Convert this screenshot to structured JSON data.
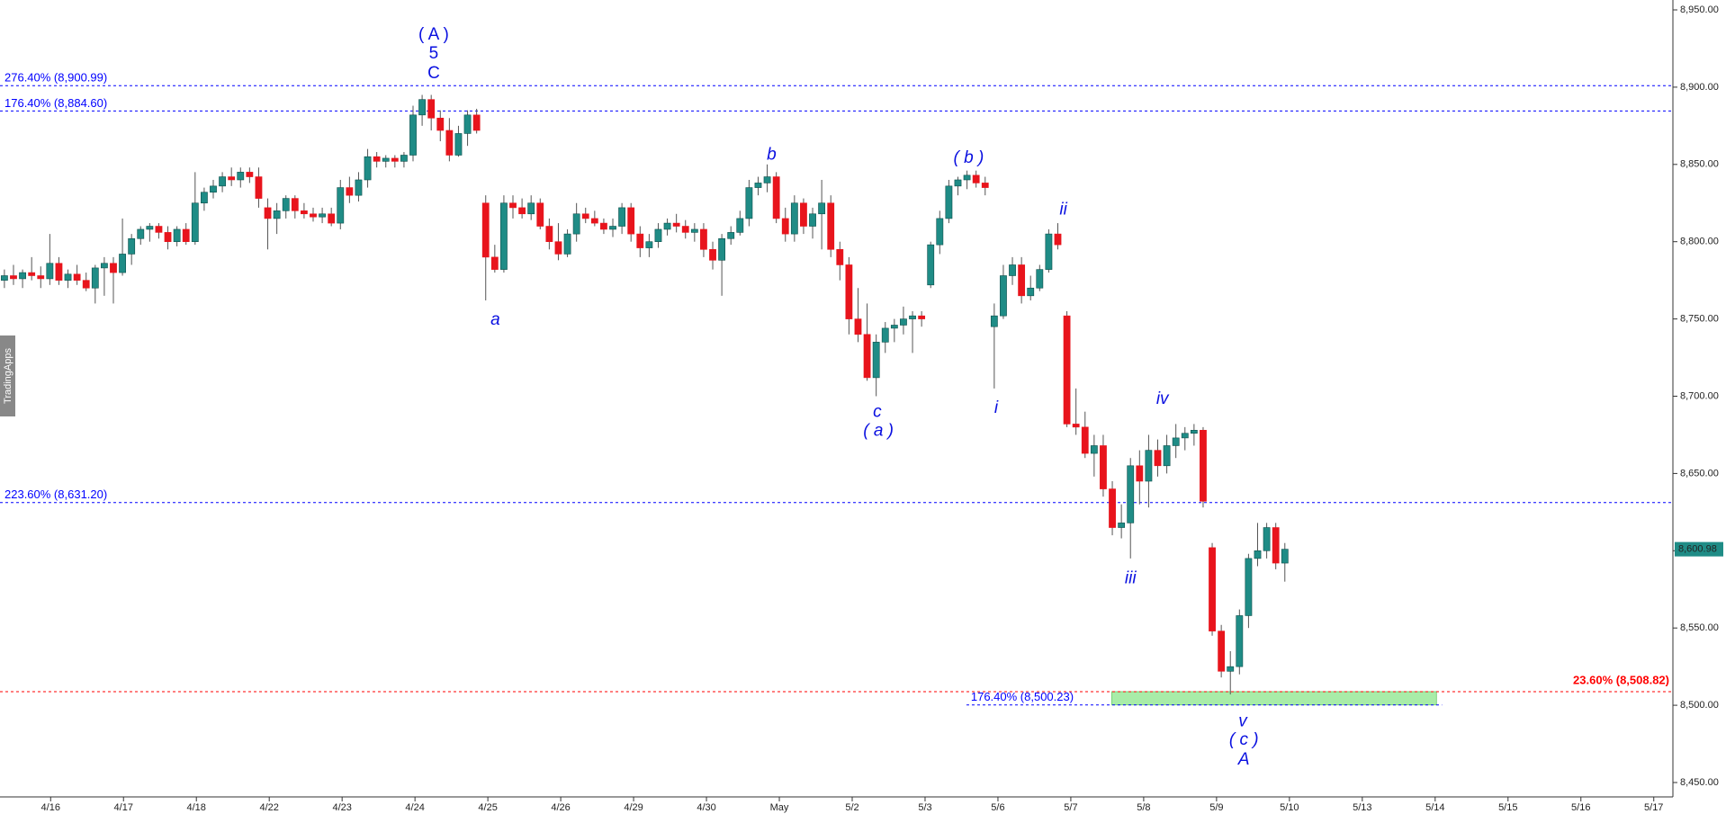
{
  "chart_data": {
    "type": "candlestick",
    "watermark": "TradingApps",
    "up_color": "#1f8c86",
    "down_color": "#e8141c",
    "ylim": [
      8450,
      8950
    ],
    "yticks": [
      {
        "value": 8450,
        "label": "8,450.00"
      },
      {
        "value": 8500,
        "label": "8,500.00"
      },
      {
        "value": 8550,
        "label": "8,550.00"
      },
      {
        "value": 8600,
        "label": "8,600.00"
      },
      {
        "value": 8650,
        "label": "8,650.00"
      },
      {
        "value": 8700,
        "label": "8,700.00"
      },
      {
        "value": 8750,
        "label": "8,750.00"
      },
      {
        "value": 8800,
        "label": "8,800.00"
      },
      {
        "value": 8850,
        "label": "8,850.00"
      },
      {
        "value": 8900,
        "label": "8,900.00"
      },
      {
        "value": 8950,
        "label": "8,950.00"
      }
    ],
    "x_labels": [
      "4/16",
      "4/17",
      "4/18",
      "4/22",
      "4/23",
      "4/24",
      "4/25",
      "4/26",
      "4/29",
      "4/30",
      "May",
      "5/2",
      "5/3",
      "5/6",
      "5/7",
      "5/8",
      "5/9",
      "5/10",
      "5/13",
      "5/14",
      "5/15",
      "5/16",
      "5/17"
    ],
    "last_price": {
      "value": 8600.98,
      "label": "8,600.98"
    },
    "levels": [
      {
        "value": 8900.99,
        "label": "276.40% (8,900.99)",
        "color": "#0000ff"
      },
      {
        "value": 8884.6,
        "label": "176.40% (8,884.60)",
        "color": "#0000ff"
      },
      {
        "value": 8631.2,
        "label": "223.60% (8,631.20)",
        "color": "#0000ff"
      },
      {
        "value": 8508.82,
        "label": "23.60% (8,508.82)",
        "color": "#ff0000"
      },
      {
        "value": 8500.23,
        "label": "176.40% (8,500.23)",
        "color": "#0000ff"
      }
    ],
    "zone_color": "#a8eca8",
    "annotations": [
      "( A )",
      "5",
      "C",
      "a",
      "b",
      "c",
      "( a )",
      "( b )",
      "i",
      "ii",
      "iii",
      "iv",
      "v",
      "( c )",
      "A"
    ],
    "candles": [
      [
        8775,
        8782,
        8770,
        8778
      ],
      [
        8778,
        8785,
        8772,
        8776
      ],
      [
        8776,
        8782,
        8770,
        8780
      ],
      [
        8780,
        8790,
        8775,
        8778
      ],
      [
        8778,
        8784,
        8770,
        8776
      ],
      [
        8776,
        8805,
        8772,
        8786
      ],
      [
        8786,
        8790,
        8772,
        8775
      ],
      [
        8775,
        8782,
        8770,
        8779
      ],
      [
        8779,
        8785,
        8772,
        8775
      ],
      [
        8775,
        8780,
        8768,
        8770
      ],
      [
        8770,
        8785,
        8760,
        8783
      ],
      [
        8783,
        8790,
        8765,
        8786
      ],
      [
        8786,
        8790,
        8760,
        8780
      ],
      [
        8780,
        8815,
        8778,
        8792
      ],
      [
        8792,
        8805,
        8785,
        8802
      ],
      [
        8802,
        8810,
        8798,
        8808
      ],
      [
        8808,
        8812,
        8800,
        8810
      ],
      [
        8810,
        8812,
        8802,
        8806
      ],
      [
        8806,
        8810,
        8795,
        8800
      ],
      [
        8800,
        8810,
        8797,
        8808
      ],
      [
        8808,
        8812,
        8798,
        8800
      ],
      [
        8800,
        8845,
        8798,
        8825
      ],
      [
        8825,
        8835,
        8820,
        8832
      ],
      [
        8832,
        8840,
        8828,
        8836
      ],
      [
        8836,
        8845,
        8832,
        8842
      ],
      [
        8842,
        8848,
        8836,
        8840
      ],
      [
        8840,
        8848,
        8835,
        8845
      ],
      [
        8845,
        8848,
        8838,
        8842
      ],
      [
        8842,
        8848,
        8822,
        8828
      ],
      [
        8822,
        8828,
        8795,
        8815
      ],
      [
        8815,
        8825,
        8805,
        8820
      ],
      [
        8820,
        8830,
        8815,
        8828
      ],
      [
        8828,
        8830,
        8815,
        8820
      ],
      [
        8820,
        8825,
        8815,
        8818
      ],
      [
        8818,
        8822,
        8813,
        8816
      ],
      [
        8816,
        8822,
        8812,
        8818
      ],
      [
        8818,
        8822,
        8810,
        8812
      ],
      [
        8812,
        8840,
        8808,
        8835
      ],
      [
        8835,
        8842,
        8825,
        8830
      ],
      [
        8830,
        8845,
        8826,
        8840
      ],
      [
        8840,
        8860,
        8835,
        8855
      ],
      [
        8855,
        8858,
        8848,
        8852
      ],
      [
        8852,
        8856,
        8848,
        8854
      ],
      [
        8854,
        8856,
        8848,
        8852
      ],
      [
        8852,
        8858,
        8848,
        8856
      ],
      [
        8856,
        8888,
        8852,
        8882
      ],
      [
        8882,
        8895,
        8875,
        8892
      ],
      [
        8892,
        8895,
        8872,
        8880
      ],
      [
        8880,
        8885,
        8865,
        8872
      ],
      [
        8872,
        8880,
        8852,
        8856
      ],
      [
        8856,
        8875,
        8855,
        8870
      ],
      [
        8870,
        8885,
        8862,
        8882
      ],
      [
        8882,
        8886,
        8870,
        8872
      ],
      [
        8825,
        8830,
        8762,
        8790
      ],
      [
        8790,
        8798,
        8780,
        8782
      ],
      [
        8782,
        8830,
        8780,
        8825
      ],
      [
        8825,
        8830,
        8815,
        8822
      ],
      [
        8822,
        8828,
        8815,
        8818
      ],
      [
        8818,
        8830,
        8814,
        8825
      ],
      [
        8825,
        8828,
        8808,
        8810
      ],
      [
        8810,
        8815,
        8795,
        8800
      ],
      [
        8800,
        8812,
        8788,
        8792
      ],
      [
        8792,
        8808,
        8790,
        8805
      ],
      [
        8805,
        8825,
        8800,
        8818
      ],
      [
        8818,
        8822,
        8812,
        8815
      ],
      [
        8815,
        8820,
        8810,
        8812
      ],
      [
        8812,
        8815,
        8805,
        8808
      ],
      [
        8808,
        8815,
        8803,
        8810
      ],
      [
        8810,
        8825,
        8805,
        8822
      ],
      [
        8822,
        8825,
        8800,
        8805
      ],
      [
        8805,
        8810,
        8790,
        8796
      ],
      [
        8796,
        8805,
        8790,
        8800
      ],
      [
        8800,
        8812,
        8796,
        8808
      ],
      [
        8808,
        8815,
        8804,
        8812
      ],
      [
        8812,
        8818,
        8806,
        8810
      ],
      [
        8810,
        8814,
        8802,
        8806
      ],
      [
        8806,
        8812,
        8800,
        8808
      ],
      [
        8808,
        8812,
        8790,
        8795
      ],
      [
        8795,
        8800,
        8782,
        8788
      ],
      [
        8788,
        8805,
        8765,
        8802
      ],
      [
        8802,
        8810,
        8798,
        8806
      ],
      [
        8806,
        8820,
        8804,
        8815
      ],
      [
        8815,
        8840,
        8810,
        8835
      ],
      [
        8835,
        8842,
        8830,
        8838
      ],
      [
        8838,
        8850,
        8832,
        8842
      ],
      [
        8842,
        8845,
        8812,
        8815
      ],
      [
        8815,
        8822,
        8800,
        8805
      ],
      [
        8805,
        8830,
        8800,
        8825
      ],
      [
        8825,
        8828,
        8805,
        8810
      ],
      [
        8810,
        8822,
        8802,
        8818
      ],
      [
        8818,
        8840,
        8795,
        8825
      ],
      [
        8825,
        8830,
        8790,
        8795
      ],
      [
        8795,
        8800,
        8775,
        8785
      ],
      [
        8785,
        8790,
        8740,
        8750
      ],
      [
        8750,
        8770,
        8735,
        8740
      ],
      [
        8740,
        8760,
        8710,
        8712
      ],
      [
        8712,
        8740,
        8700,
        8735
      ],
      [
        8735,
        8748,
        8728,
        8744
      ],
      [
        8744,
        8750,
        8735,
        8746
      ],
      [
        8746,
        8758,
        8740,
        8750
      ],
      [
        8750,
        8755,
        8728,
        8752
      ],
      [
        8752,
        8755,
        8745,
        8750
      ],
      [
        8772,
        8800,
        8770,
        8798
      ],
      [
        8798,
        8820,
        8792,
        8815
      ],
      [
        8815,
        8840,
        8812,
        8836
      ],
      [
        8836,
        8842,
        8830,
        8840
      ],
      [
        8840,
        8846,
        8834,
        8843
      ],
      [
        8843,
        8846,
        8835,
        8838
      ],
      [
        8838,
        8842,
        8830,
        8835
      ],
      [
        8745,
        8760,
        8705,
        8752
      ],
      [
        8752,
        8785,
        8750,
        8778
      ],
      [
        8778,
        8790,
        8772,
        8785
      ],
      [
        8785,
        8790,
        8760,
        8765
      ],
      [
        8765,
        8778,
        8762,
        8770
      ],
      [
        8770,
        8785,
        8768,
        8782
      ],
      [
        8782,
        8808,
        8780,
        8805
      ],
      [
        8805,
        8812,
        8795,
        8798
      ],
      [
        8752,
        8755,
        8680,
        8682
      ],
      [
        8682,
        8705,
        8675,
        8680
      ],
      [
        8680,
        8690,
        8660,
        8663
      ],
      [
        8663,
        8675,
        8648,
        8668
      ],
      [
        8668,
        8675,
        8635,
        8640
      ],
      [
        8640,
        8645,
        8610,
        8615
      ],
      [
        8615,
        8630,
        8608,
        8618
      ],
      [
        8618,
        8660,
        8595,
        8655
      ],
      [
        8655,
        8665,
        8630,
        8645
      ],
      [
        8645,
        8675,
        8628,
        8665
      ],
      [
        8665,
        8672,
        8648,
        8655
      ],
      [
        8655,
        8675,
        8650,
        8668
      ],
      [
        8668,
        8682,
        8660,
        8673
      ],
      [
        8673,
        8680,
        8665,
        8676
      ],
      [
        8676,
        8682,
        8668,
        8678
      ],
      [
        8678,
        8680,
        8628,
        8632
      ],
      [
        8602,
        8605,
        8545,
        8548
      ],
      [
        8548,
        8552,
        8518,
        8522
      ],
      [
        8522,
        8535,
        8507,
        8525
      ],
      [
        8525,
        8562,
        8520,
        8558
      ],
      [
        8558,
        8598,
        8550,
        8595
      ],
      [
        8595,
        8618,
        8590,
        8600
      ],
      [
        8600,
        8618,
        8595,
        8615
      ],
      [
        8615,
        8618,
        8588,
        8592
      ],
      [
        8592,
        8605,
        8580,
        8600.98
      ]
    ]
  }
}
